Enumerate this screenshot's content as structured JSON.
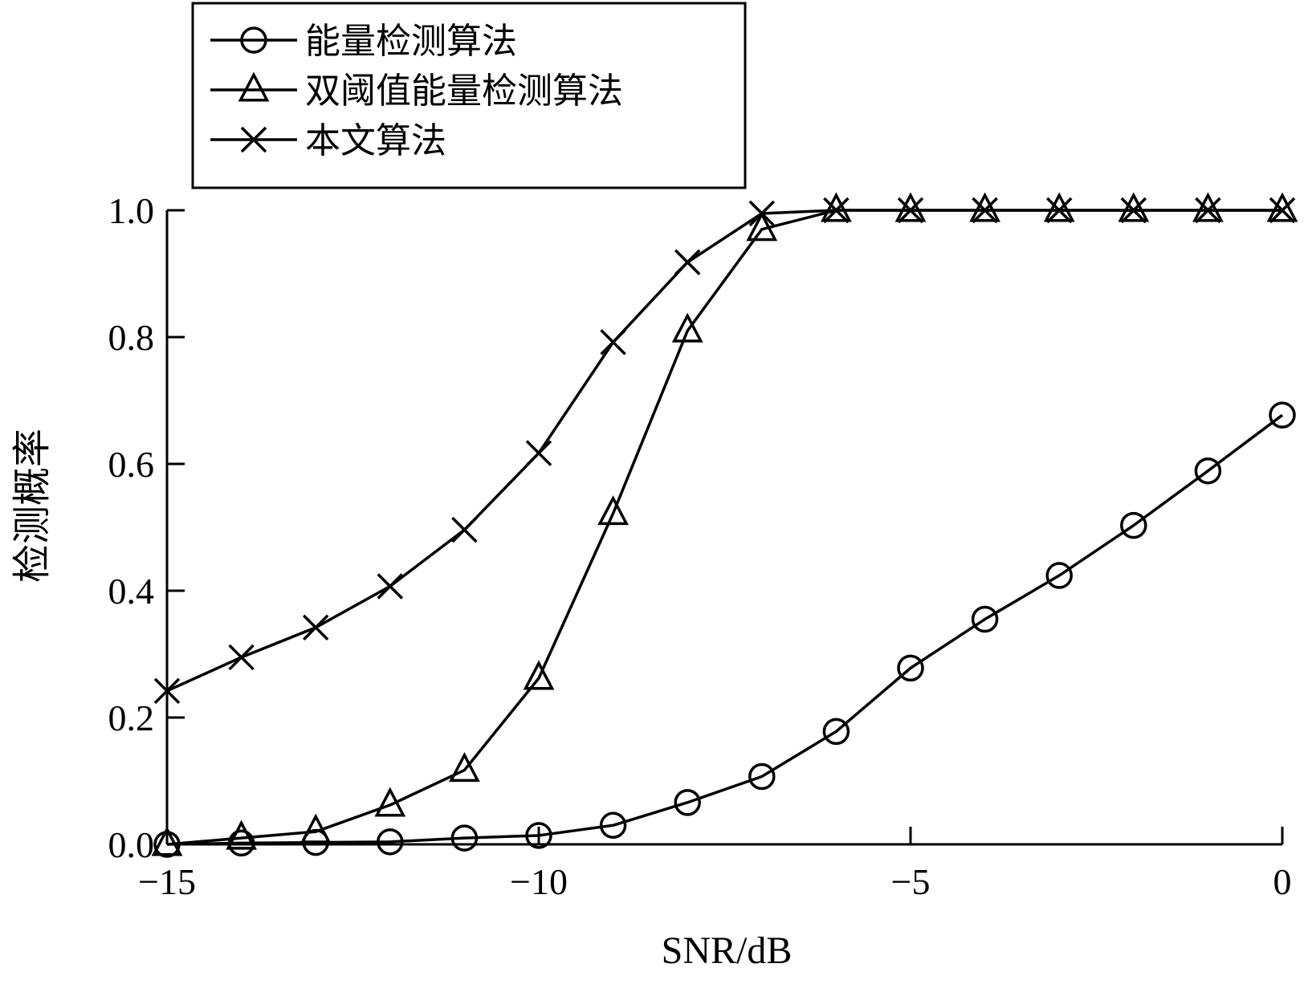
{
  "chart_data": {
    "type": "line",
    "xlabel": "SNR/dB",
    "ylabel": "检测概率",
    "xlim": [
      -15,
      0
    ],
    "ylim": [
      0,
      1.0
    ],
    "xticks": [
      -15,
      -10,
      -5,
      0
    ],
    "xtick_labels": [
      "−15",
      "−10",
      "−5",
      "0"
    ],
    "yticks": [
      0,
      0.2,
      0.4,
      0.6,
      0.8,
      1.0
    ],
    "ytick_labels": [
      "0.0",
      "0.2",
      "0.4",
      "0.6",
      "0.8",
      "1.0"
    ],
    "grid": false,
    "legend_position": "top-left",
    "x": [
      -15,
      -14,
      -13,
      -12,
      -11,
      -10,
      -9,
      -8,
      -7,
      -6,
      -5,
      -4,
      -3,
      -2,
      -1,
      0
    ],
    "series": [
      {
        "name": "能量检测算法",
        "marker": "circle",
        "values": [
          0.0,
          0.002,
          0.003,
          0.004,
          0.01,
          0.014,
          0.03,
          0.066,
          0.107,
          0.178,
          0.278,
          0.355,
          0.424,
          0.503,
          0.589,
          0.677
        ]
      },
      {
        "name": "双阈值能量检测算法",
        "marker": "triangle",
        "values": [
          0.0,
          0.01,
          0.02,
          0.062,
          0.117,
          0.262,
          0.522,
          0.81,
          0.97,
          1.0,
          1.0,
          1.0,
          1.0,
          1.0,
          1.0,
          1.0
        ]
      },
      {
        "name": "本文算法",
        "marker": "cross",
        "values": [
          0.242,
          0.295,
          0.342,
          0.407,
          0.496,
          0.617,
          0.792,
          0.918,
          0.995,
          1.0,
          1.0,
          1.0,
          1.0,
          1.0,
          1.0,
          1.0
        ]
      }
    ]
  }
}
